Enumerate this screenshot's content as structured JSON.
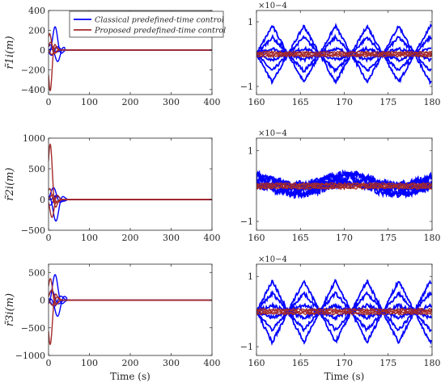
{
  "legend": {
    "entries": [
      {
        "label": "Classical predefined-time control",
        "color": "#0000ff"
      },
      {
        "label": "Proposed predefined-time control",
        "color": "#a52a2a"
      }
    ]
  },
  "chart_data": [
    {
      "id": "p11",
      "type": "line",
      "ylabel": "r̃1i(m)",
      "xlabel": "",
      "xlim": [
        0,
        400
      ],
      "ylim": [
        -450,
        400
      ],
      "xticks": [
        0,
        100,
        200,
        300,
        400
      ],
      "yticks": [
        -400,
        -200,
        0,
        200,
        400
      ],
      "ytick_labels": [
        "−400",
        "−200",
        "0",
        "200",
        "400"
      ],
      "series": [
        {
          "name": "Classical predefined-time control",
          "color": "#0000ff",
          "peaks": [
            {
              "x": 16,
              "y": 235
            },
            {
              "x": 24,
              "y": -120
            },
            {
              "x": 9,
              "y": 60
            },
            {
              "x": 13,
              "y": -70
            }
          ],
          "settle_x": 40
        },
        {
          "name": "Proposed predefined-time control",
          "color": "#a52a2a",
          "peaks": [
            {
              "x": 4,
              "y": -410
            },
            {
              "x": 4,
              "y": 170
            },
            {
              "x": 8,
              "y": 90
            },
            {
              "x": 12,
              "y": -60
            }
          ],
          "settle_x": 30
        }
      ]
    },
    {
      "id": "p12",
      "type": "line",
      "xlabel": "",
      "ylabel": "",
      "xlim": [
        160,
        180
      ],
      "ylim": [
        -1.25,
        1.35
      ],
      "yexponent": "×10−4",
      "xticks": [
        160,
        165,
        170,
        175,
        180
      ],
      "yticks": [
        -1,
        1
      ],
      "ytick_labels": [
        "−1",
        "1"
      ]
    },
    {
      "id": "p21",
      "type": "line",
      "ylabel": "r̃2i(m)",
      "xlabel": "",
      "xlim": [
        0,
        400
      ],
      "ylim": [
        -500,
        1000
      ],
      "xticks": [
        0,
        100,
        200,
        300,
        400
      ],
      "yticks": [
        -500,
        0,
        500,
        1000
      ],
      "ytick_labels": [
        "−500",
        "0",
        "500",
        "1000"
      ],
      "series": [
        {
          "name": "Classical predefined-time control",
          "color": "#0000ff",
          "peaks": [
            {
              "x": 18,
              "y": -350
            },
            {
              "x": 14,
              "y": 200
            },
            {
              "x": 24,
              "y": 80
            },
            {
              "x": 10,
              "y": -120
            }
          ],
          "settle_x": 45
        },
        {
          "name": "Proposed predefined-time control",
          "color": "#a52a2a",
          "peaks": [
            {
              "x": 4,
              "y": 900
            },
            {
              "x": 10,
              "y": -300
            },
            {
              "x": 6,
              "y": 200
            },
            {
              "x": 14,
              "y": 100
            }
          ],
          "settle_x": 35
        }
      ]
    },
    {
      "id": "p22",
      "type": "line",
      "xlabel": "",
      "ylabel": "",
      "xlim": [
        160,
        180
      ],
      "ylim": [
        -1.25,
        1.35
      ],
      "yexponent": "×10−4",
      "xticks": [
        160,
        165,
        170,
        175,
        180
      ],
      "yticks": [
        -1,
        1
      ],
      "ytick_labels": [
        "−1",
        "1"
      ]
    },
    {
      "id": "p31",
      "type": "line",
      "ylabel": "r̃3i(m)",
      "xlabel": "Time (s)",
      "xlim": [
        0,
        400
      ],
      "ylim": [
        -1000,
        650
      ],
      "xticks": [
        0,
        100,
        200,
        300,
        400
      ],
      "yticks": [
        -1000,
        -500,
        0,
        500
      ],
      "ytick_labels": [
        "−1000",
        "−500",
        "0",
        "500"
      ],
      "series": [
        {
          "name": "Classical predefined-time control",
          "color": "#0000ff",
          "peaks": [
            {
              "x": 16,
              "y": 460
            },
            {
              "x": 24,
              "y": -300
            },
            {
              "x": 12,
              "y": 200
            },
            {
              "x": 20,
              "y": -150
            }
          ],
          "settle_x": 45
        },
        {
          "name": "Proposed predefined-time control",
          "color": "#a52a2a",
          "peaks": [
            {
              "x": 4,
              "y": -800
            },
            {
              "x": 6,
              "y": 400
            },
            {
              "x": 10,
              "y": 200
            },
            {
              "x": 14,
              "y": -120
            }
          ],
          "settle_x": 35
        }
      ]
    },
    {
      "id": "p32",
      "type": "line",
      "xlabel": "Time (s)",
      "ylabel": "",
      "xlim": [
        160,
        180
      ],
      "ylim": [
        -1.25,
        1.35
      ],
      "yexponent": "×10−4",
      "xticks": [
        160,
        165,
        170,
        175,
        180
      ],
      "yticks": [
        -1,
        1
      ],
      "ytick_labels": [
        "−1",
        "1"
      ]
    }
  ]
}
